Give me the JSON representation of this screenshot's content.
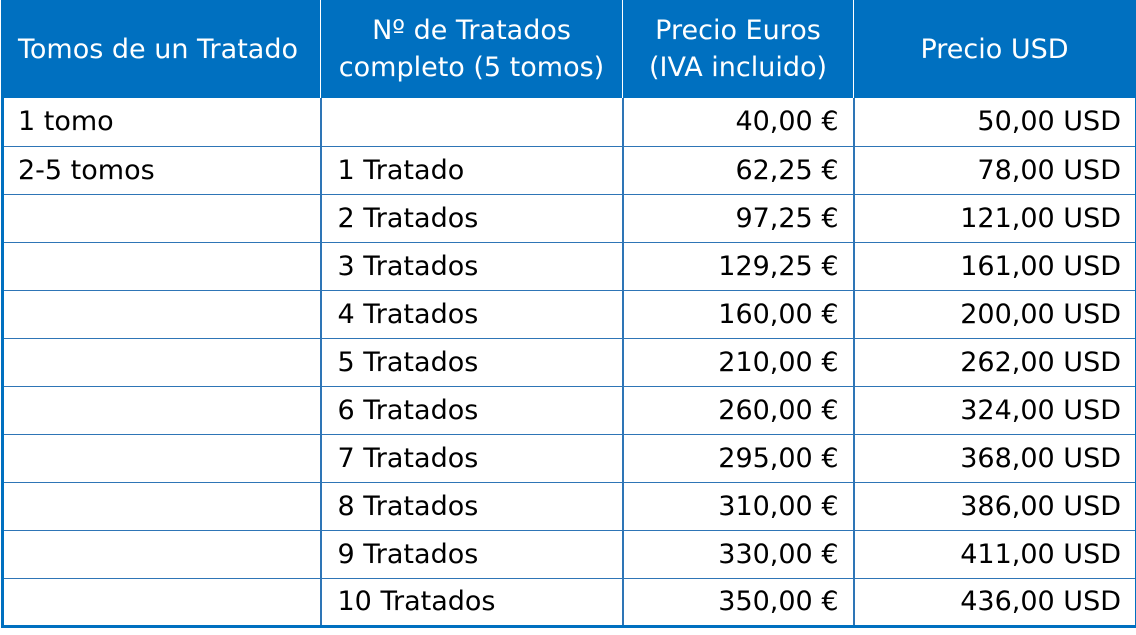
{
  "table": {
    "headers": {
      "col1": "Tomos de un Tratado",
      "col2_line1": "Nº de Tratados",
      "col2_line2": "completo (5 tomos)",
      "col3_line1": "Precio Euros",
      "col3_line2": "(IVA incluido)",
      "col4": "Precio USD"
    },
    "rows": [
      {
        "tomos": "1 tomo",
        "tratados": "",
        "eur": "40,00 €",
        "usd": "50,00 USD"
      },
      {
        "tomos": "2-5 tomos",
        "tratados": "1 Tratado",
        "eur": "62,25 €",
        "usd": "78,00 USD"
      },
      {
        "tomos": "",
        "tratados": "2 Tratados",
        "eur": "97,25 €",
        "usd": "121,00 USD"
      },
      {
        "tomos": "",
        "tratados": "3 Tratados",
        "eur": "129,25 €",
        "usd": "161,00 USD"
      },
      {
        "tomos": "",
        "tratados": "4 Tratados",
        "eur": "160,00 €",
        "usd": "200,00 USD"
      },
      {
        "tomos": "",
        "tratados": "5 Tratados",
        "eur": "210,00 €",
        "usd": "262,00 USD"
      },
      {
        "tomos": "",
        "tratados": "6 Tratados",
        "eur": "260,00 €",
        "usd": "324,00 USD"
      },
      {
        "tomos": "",
        "tratados": "7 Tratados",
        "eur": "295,00 €",
        "usd": "368,00 USD"
      },
      {
        "tomos": "",
        "tratados": "8 Tratados",
        "eur": "310,00 €",
        "usd": "386,00 USD"
      },
      {
        "tomos": "",
        "tratados": "9 Tratados",
        "eur": "330,00 €",
        "usd": "411,00 USD"
      },
      {
        "tomos": "",
        "tratados": "10 Tratados",
        "eur": "350,00 €",
        "usd": "436,00 USD"
      }
    ]
  }
}
